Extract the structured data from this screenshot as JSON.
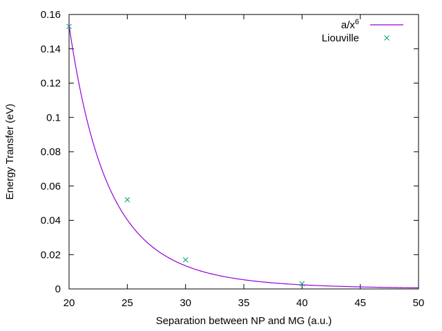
{
  "chart_data": {
    "type": "line",
    "title": "",
    "xlabel": "Separation between NP and MG (a.u.)",
    "ylabel": "Energy Transfer (eV)",
    "xlim": [
      20,
      50
    ],
    "ylim": [
      0,
      0.16
    ],
    "xticks": [
      20,
      25,
      30,
      35,
      40,
      45,
      50
    ],
    "xtick_labels": [
      "20",
      "25",
      "30",
      "35",
      "40",
      "45",
      "50"
    ],
    "yticks": [
      0,
      0.02,
      0.04,
      0.06,
      0.08,
      0.1,
      0.12,
      0.14,
      0.16
    ],
    "ytick_labels": [
      "0",
      "0.02",
      "0.04",
      "0.06",
      "0.08",
      "0.1",
      "0.12",
      "0.14",
      "0.16"
    ],
    "grid": false,
    "legend_position": "top-right",
    "series": [
      {
        "name": "a/x",
        "name_superscript": "6",
        "kind": "line",
        "color": "#9400d3",
        "function": "a/x^6",
        "a": 9830400
      },
      {
        "name": "Liouville",
        "kind": "scatter",
        "marker": "x",
        "color": "#009e73",
        "x": [
          20,
          25,
          30,
          40
        ],
        "y": [
          0.153,
          0.052,
          0.017,
          0.003
        ]
      }
    ]
  }
}
